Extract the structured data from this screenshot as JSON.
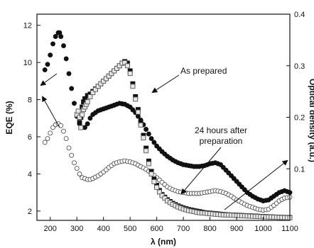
{
  "chart_data": {
    "type": "scatter",
    "xlabel": "λ (nm)",
    "ylabel_left": "EQE (%)",
    "ylabel_right": "Optical density (a.u.)",
    "xlim": [
      150,
      1100
    ],
    "ylim_left": [
      1.5,
      12.6
    ],
    "ylim_right": [
      0.0,
      0.4
    ],
    "x_ticks": [
      200,
      300,
      400,
      500,
      600,
      700,
      800,
      900,
      1000,
      1100
    ],
    "y_left_ticks": [
      2,
      4,
      6,
      8,
      10,
      12
    ],
    "y_right_ticks": [
      0.1,
      0.2,
      0.3,
      0.4
    ],
    "grid": false,
    "series": [
      {
        "axis": "left",
        "marker": "filled-circle",
        "x": [
          180,
          190,
          200,
          210,
          220,
          230,
          235,
          240,
          250,
          260,
          270,
          280,
          290,
          300,
          310,
          320,
          330,
          340,
          350,
          360,
          380,
          400,
          420,
          440,
          460,
          480,
          500,
          520,
          540,
          560,
          580,
          600,
          620,
          640,
          660,
          680,
          700,
          720,
          740,
          760,
          780,
          800,
          820,
          840,
          860,
          880,
          900,
          920,
          940,
          960,
          980,
          1000,
          1020,
          1040,
          1060,
          1080,
          1100
        ],
        "values": [
          9.6,
          9.9,
          10.4,
          11.0,
          11.4,
          11.6,
          11.6,
          11.4,
          10.9,
          10.2,
          9.4,
          8.6,
          7.8,
          7.1,
          6.7,
          6.5,
          6.5,
          6.7,
          7.0,
          7.2,
          7.4,
          7.5,
          7.6,
          7.7,
          7.8,
          7.75,
          7.6,
          7.3,
          6.9,
          6.4,
          5.9,
          5.5,
          5.2,
          4.95,
          4.75,
          4.6,
          4.5,
          4.45,
          4.4,
          4.4,
          4.45,
          4.55,
          4.6,
          4.5,
          4.2,
          3.9,
          3.6,
          3.3,
          3.0,
          2.8,
          2.65,
          2.55,
          2.6,
          2.8,
          3.0,
          3.1,
          3.0
        ]
      },
      {
        "axis": "left",
        "marker": "open-circle",
        "x": [
          180,
          190,
          200,
          210,
          220,
          230,
          240,
          250,
          260,
          270,
          280,
          290,
          300,
          310,
          320,
          330,
          340,
          350,
          360,
          380,
          400,
          420,
          440,
          460,
          480,
          500,
          520,
          540,
          560,
          580,
          600,
          620,
          640,
          660,
          680,
          700,
          720,
          740,
          760,
          780,
          800,
          820,
          840,
          860,
          880,
          900,
          920,
          940,
          960,
          980,
          1000,
          1020,
          1040,
          1060,
          1080,
          1100
        ],
        "values": [
          5.7,
          5.9,
          6.2,
          6.5,
          6.65,
          6.7,
          6.6,
          6.3,
          5.9,
          5.4,
          5.0,
          4.6,
          4.3,
          4.0,
          3.8,
          3.75,
          3.7,
          3.7,
          3.75,
          3.9,
          4.1,
          4.35,
          4.55,
          4.65,
          4.7,
          4.65,
          4.55,
          4.4,
          4.25,
          4.05,
          3.8,
          3.55,
          3.3,
          3.15,
          3.05,
          3.0,
          2.95,
          2.95,
          2.95,
          3.0,
          3.05,
          3.1,
          3.05,
          2.95,
          2.8,
          2.6,
          2.45,
          2.3,
          2.2,
          2.1,
          2.05,
          2.1,
          2.3,
          2.55,
          2.7,
          2.75
        ]
      },
      {
        "axis": "right",
        "marker": "filled-square",
        "x": [
          310,
          315,
          320,
          325,
          330,
          340,
          350,
          360,
          380,
          400,
          420,
          440,
          460,
          470,
          480,
          490,
          500,
          510,
          520,
          530,
          540,
          550,
          560,
          570,
          580,
          590,
          600,
          610,
          620,
          640,
          660,
          680,
          700,
          720,
          740,
          760,
          780,
          800,
          820,
          840,
          860,
          880,
          900,
          920,
          940,
          960,
          980,
          1000,
          1020,
          1040,
          1060,
          1080,
          1100
        ],
        "values": [
          0.19,
          0.2,
          0.22,
          0.23,
          0.236,
          0.242,
          0.245,
          0.25,
          0.26,
          0.27,
          0.28,
          0.29,
          0.3,
          0.305,
          0.308,
          0.305,
          0.29,
          0.265,
          0.24,
          0.215,
          0.19,
          0.165,
          0.14,
          0.115,
          0.095,
          0.08,
          0.068,
          0.058,
          0.05,
          0.04,
          0.033,
          0.028,
          0.024,
          0.021,
          0.019,
          0.017,
          0.015,
          0.014,
          0.013,
          0.012,
          0.011,
          0.0105,
          0.01,
          0.0095,
          0.009,
          0.0085,
          0.008,
          0.0075,
          0.007,
          0.0065,
          0.006,
          0.0058,
          0.0055
        ]
      },
      {
        "axis": "right",
        "marker": "open-square",
        "x": [
          300,
          305,
          310,
          315,
          320,
          325,
          330,
          335,
          340,
          350,
          360,
          380,
          400,
          420,
          440,
          460,
          470,
          480,
          490,
          500,
          510,
          520,
          530,
          540,
          550,
          560,
          570,
          580,
          590,
          600,
          610,
          620,
          640,
          660,
          680,
          700,
          720,
          740,
          760,
          780,
          800,
          820,
          840,
          860,
          880,
          900,
          920,
          940,
          960,
          980,
          1000,
          1020,
          1040,
          1060,
          1080,
          1100
        ],
        "values": [
          0.205,
          0.212,
          0.2,
          0.18,
          0.205,
          0.215,
          0.22,
          0.225,
          0.23,
          0.24,
          0.248,
          0.26,
          0.27,
          0.28,
          0.29,
          0.3,
          0.305,
          0.306,
          0.3,
          0.285,
          0.26,
          0.235,
          0.21,
          0.185,
          0.16,
          0.135,
          0.11,
          0.09,
          0.075,
          0.064,
          0.055,
          0.048,
          0.038,
          0.031,
          0.026,
          0.022,
          0.019,
          0.017,
          0.015,
          0.014,
          0.013,
          0.012,
          0.011,
          0.0105,
          0.01,
          0.0095,
          0.009,
          0.0085,
          0.008,
          0.0075,
          0.007,
          0.0066,
          0.0062,
          0.0058,
          0.0055,
          0.005
        ]
      }
    ],
    "annotations": [
      {
        "text": "As prepared"
      },
      {
        "text": "24 hours after"
      },
      {
        "text": "preparation"
      }
    ]
  }
}
